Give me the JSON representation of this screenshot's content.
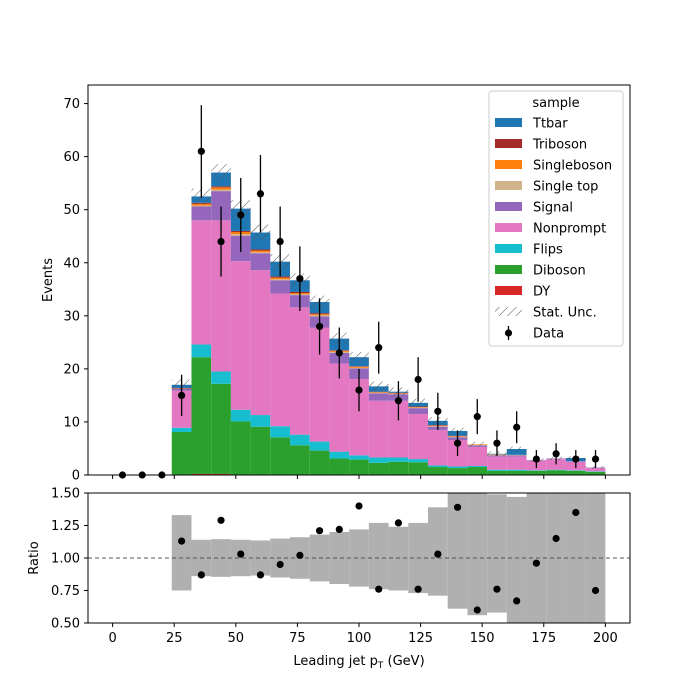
{
  "chart_data": {
    "type": "bar",
    "stacked": true,
    "xlabel": "Leading jet  p",
    "xlabel_sub": "T",
    "xlabel_unit": " (GeV)",
    "ylabel": "Events",
    "ratio_ylabel": "Ratio",
    "xlim": [
      -10,
      210
    ],
    "ylim": [
      0,
      73.5
    ],
    "ratio_ylim": [
      0.5,
      1.5
    ],
    "xticks": [
      0,
      25,
      50,
      75,
      100,
      125,
      150,
      175,
      200
    ],
    "yticks": [
      0,
      10,
      20,
      30,
      40,
      50,
      60,
      70
    ],
    "ratio_yticks": [
      "0.50",
      "0.75",
      "1.00",
      "1.25",
      "1.50"
    ],
    "ratio_reference": 1.0,
    "legend_title": "sample",
    "legend_position": "top-right",
    "bin_edges": [
      0,
      8,
      16,
      24,
      32,
      40,
      48,
      56,
      64,
      72,
      80,
      88,
      96,
      104,
      112,
      120,
      128,
      136,
      144,
      152,
      160,
      168,
      176,
      184,
      192,
      200
    ],
    "series": [
      {
        "name": "DY",
        "color": "#d62728",
        "values": [
          0,
          0,
          0,
          0.1,
          0.2,
          0.2,
          0.1,
          0.1,
          0.1,
          0.1,
          0.1,
          0.1,
          0.1,
          0.1,
          0,
          0,
          0,
          0,
          0,
          0,
          0,
          0,
          0,
          0,
          0
        ]
      },
      {
        "name": "Diboson",
        "color": "#2ca02c",
        "values": [
          0,
          0,
          0,
          8,
          22,
          17,
          10,
          9,
          7,
          5.5,
          4.5,
          3,
          2.8,
          2.2,
          2.5,
          2.4,
          1.5,
          1.3,
          1.5,
          0.8,
          0.8,
          0.8,
          0.9,
          0.8,
          0.6
        ]
      },
      {
        "name": "Flips",
        "color": "#17becf",
        "values": [
          0,
          0,
          0,
          0.8,
          2.4,
          2.3,
          2.2,
          2.2,
          2.1,
          2,
          1.7,
          1.3,
          0.8,
          1,
          0.8,
          0.6,
          0.3,
          0.3,
          0.2,
          0.2,
          0.2,
          0.1,
          0.1,
          0.1,
          0.1
        ]
      },
      {
        "name": "Nonprompt",
        "color": "#e377c2",
        "values": [
          0,
          0,
          0,
          7,
          23.4,
          28.5,
          28,
          27.3,
          25,
          24,
          21.5,
          16.6,
          14.4,
          10.7,
          10.7,
          8.5,
          6.7,
          5,
          3.6,
          2.5,
          2.5,
          1.8,
          2,
          1.6,
          0.6
        ]
      },
      {
        "name": "Signal",
        "color": "#9467bd",
        "values": [
          0,
          0,
          0,
          0.4,
          2.6,
          5.5,
          4.8,
          3.2,
          2.5,
          2.3,
          2.1,
          2,
          2,
          1.4,
          1.2,
          1.1,
          0.6,
          0.5,
          0.3,
          0.2,
          0.2,
          0.1,
          0.1,
          0.1,
          0.1
        ]
      },
      {
        "name": "Single top",
        "color": "#d2b48c",
        "values": [
          0,
          0,
          0,
          0,
          0.2,
          0.3,
          0.3,
          0.2,
          0.2,
          0.2,
          0.2,
          0.2,
          0.1,
          0.1,
          0.1,
          0.1,
          0.1,
          0.1,
          0.1,
          0.1,
          0.1,
          0,
          0,
          0,
          0
        ]
      },
      {
        "name": "Singleboson",
        "color": "#ff7f0e",
        "values": [
          0,
          0,
          0,
          0.1,
          0.3,
          0.4,
          0.4,
          0.3,
          0.3,
          0.2,
          0.2,
          0.2,
          0.2,
          0.1,
          0.1,
          0.1,
          0.1,
          0.1,
          0.1,
          0.1,
          0,
          0,
          0,
          0,
          0
        ]
      },
      {
        "name": "Triboson",
        "color": "#a52a2a",
        "values": [
          0,
          0,
          0,
          0,
          0.2,
          0.2,
          0.2,
          0.2,
          0.2,
          0.2,
          0.2,
          0.1,
          0.1,
          0.1,
          0.1,
          0.1,
          0.1,
          0.1,
          0,
          0,
          0,
          0,
          0,
          0,
          0
        ]
      },
      {
        "name": "Ttbar",
        "color": "#1f77b4",
        "values": [
          0,
          0,
          0,
          0.6,
          1.2,
          2.6,
          4.2,
          3.2,
          2.8,
          2.2,
          2.1,
          2.2,
          1.7,
          1,
          0.2,
          0.7,
          0.8,
          0.9,
          0,
          0.1,
          1.1,
          0,
          0,
          0.6,
          0
        ]
      }
    ],
    "stat_unc": [
      0,
      0,
      0,
      1.0,
      1.5,
      1.6,
      1.6,
      1.5,
      1.4,
      1.3,
      1.2,
      1.1,
      1.0,
      0.9,
      0.8,
      0.8,
      0.7,
      0.6,
      0.5,
      0.45,
      0.45,
      0.35,
      0.35,
      0.3,
      0.25
    ],
    "stat_unc_label": "Stat. Unc.",
    "data_label": "Data",
    "data": {
      "x": [
        4,
        12,
        20,
        28,
        36,
        44,
        52,
        60,
        68,
        76,
        84,
        92,
        100,
        108,
        116,
        124,
        132,
        140,
        148,
        156,
        164,
        172,
        180,
        188,
        196
      ],
      "y": [
        0,
        0,
        0,
        15,
        61,
        44,
        49,
        53,
        44,
        37,
        28,
        23,
        16,
        24,
        14,
        18,
        12,
        6,
        11,
        6,
        9,
        3,
        4,
        3,
        3
      ],
      "yerr": [
        0,
        0,
        0,
        3.9,
        8.7,
        6.6,
        7,
        7.3,
        6.6,
        6.1,
        5.3,
        4.8,
        4,
        4.9,
        3.7,
        4.2,
        3.5,
        2.4,
        3.3,
        2.4,
        3,
        1.7,
        2,
        1.7,
        1.7
      ]
    },
    "ratio": {
      "x": [
        28,
        36,
        44,
        52,
        60,
        68,
        76,
        84,
        92,
        100,
        108,
        116,
        124,
        132,
        140,
        148,
        156,
        164,
        172,
        180,
        188,
        196
      ],
      "y": [
        1.13,
        0.87,
        1.29,
        1.03,
        0.87,
        0.95,
        1.02,
        1.21,
        1.22,
        1.4,
        0.76,
        1.27,
        0.76,
        1.03,
        1.39,
        0.6,
        0.76,
        0.67,
        0.96,
        1.15,
        1.35,
        0.75
      ],
      "band_low": [
        0.75,
        0.86,
        0.855,
        0.86,
        0.865,
        0.85,
        0.84,
        0.82,
        0.8,
        0.78,
        0.76,
        0.75,
        0.73,
        0.71,
        0.61,
        0.56,
        0.58,
        0.5,
        0.5,
        0.5,
        0.5,
        0.5
      ],
      "band_high": [
        1.33,
        1.14,
        1.145,
        1.14,
        1.135,
        1.15,
        1.16,
        1.18,
        1.2,
        1.22,
        1.27,
        1.24,
        1.27,
        1.39,
        1.5,
        1.5,
        1.49,
        1.47,
        1.5,
        1.5,
        1.5,
        1.5
      ]
    }
  }
}
